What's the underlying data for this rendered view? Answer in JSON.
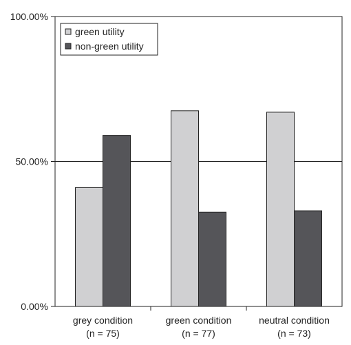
{
  "chart_data": {
    "type": "bar",
    "categories": [
      [
        "grey condition",
        "(n = 75)"
      ],
      [
        "green condition",
        "(n = 77)"
      ],
      [
        "neutral condition",
        "(n = 73)"
      ]
    ],
    "series": [
      {
        "name": "green utility",
        "values": [
          41,
          67.5,
          67
        ],
        "color": "#d0d0d2"
      },
      {
        "name": "non-green utility",
        "values": [
          59,
          32.5,
          33
        ],
        "color": "#555559"
      }
    ],
    "ylim": [
      0,
      100
    ],
    "yticks": [
      0,
      50,
      100
    ],
    "ytick_labels": [
      "0.00%",
      "50.00%",
      "100.00%"
    ],
    "grid": "horizontal at 50%",
    "legend_position": "top-left",
    "title": "",
    "xlabel": "",
    "ylabel": ""
  }
}
